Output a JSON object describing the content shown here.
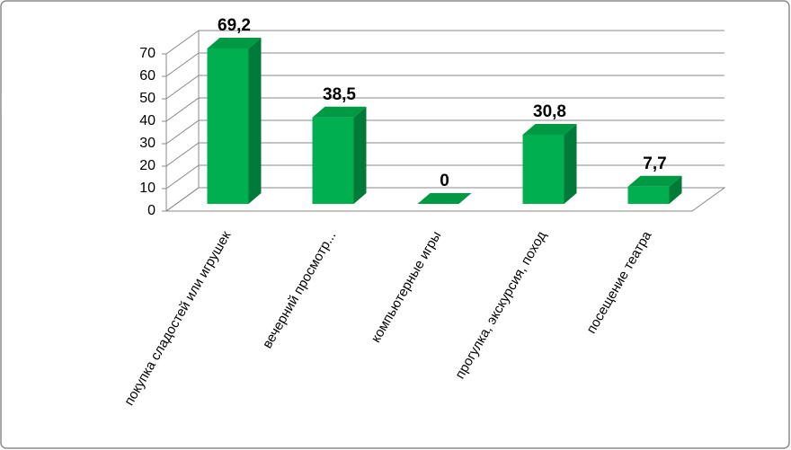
{
  "chart_data": {
    "type": "bar3d",
    "categories": [
      "покупка сладостей или игрушек",
      "вечерний просмотр...",
      "компьютерные игры",
      "прогулка, экскурсия, поход",
      "посещение театра"
    ],
    "values": [
      69.2,
      38.5,
      0,
      30.8,
      7.7
    ],
    "value_labels": [
      "69,2",
      "38,5",
      "0",
      "30,8",
      "7,7"
    ],
    "color": "#00b050",
    "ylim": [
      0,
      70
    ],
    "yticks": [
      0,
      10,
      20,
      30,
      40,
      50,
      60,
      70
    ],
    "grid": true
  }
}
